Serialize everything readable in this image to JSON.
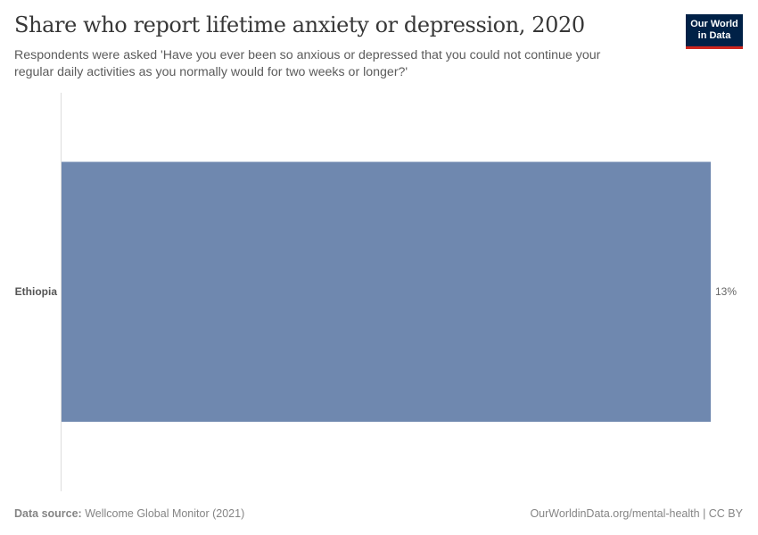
{
  "header": {
    "title": "Share who report lifetime anxiety or depression, 2020",
    "subtitle": "Respondents were asked 'Have you ever been so anxious or depressed that you could not continue your regular daily activities as you normally would for two weeks or longer?'"
  },
  "logo": {
    "line1": "Our World",
    "line2": "in Data",
    "bg_color": "#002147",
    "accent_color": "#ce261e"
  },
  "bars": [
    {
      "label": "Ethiopia",
      "value_label": "13%",
      "color": "#6f88af"
    }
  ],
  "footer": {
    "source_label": "Data source:",
    "source_text": "Wellcome Global Monitor (2021)",
    "url_text": "OurWorldinData.org/mental-health | CC BY"
  },
  "chart_data": {
    "type": "bar",
    "orientation": "horizontal",
    "title": "Share who report lifetime anxiety or depression, 2020",
    "subtitle": "Respondents were asked 'Have you ever been so anxious or depressed that you could not continue your regular daily activities as you normally would for two weeks or longer?'",
    "categories": [
      "Ethiopia"
    ],
    "values": [
      13
    ],
    "value_labels": [
      "13%"
    ],
    "unit": "%",
    "xlabel": "",
    "ylabel": "",
    "grid": false,
    "legend": null,
    "source": "Wellcome Global Monitor (2021)"
  }
}
